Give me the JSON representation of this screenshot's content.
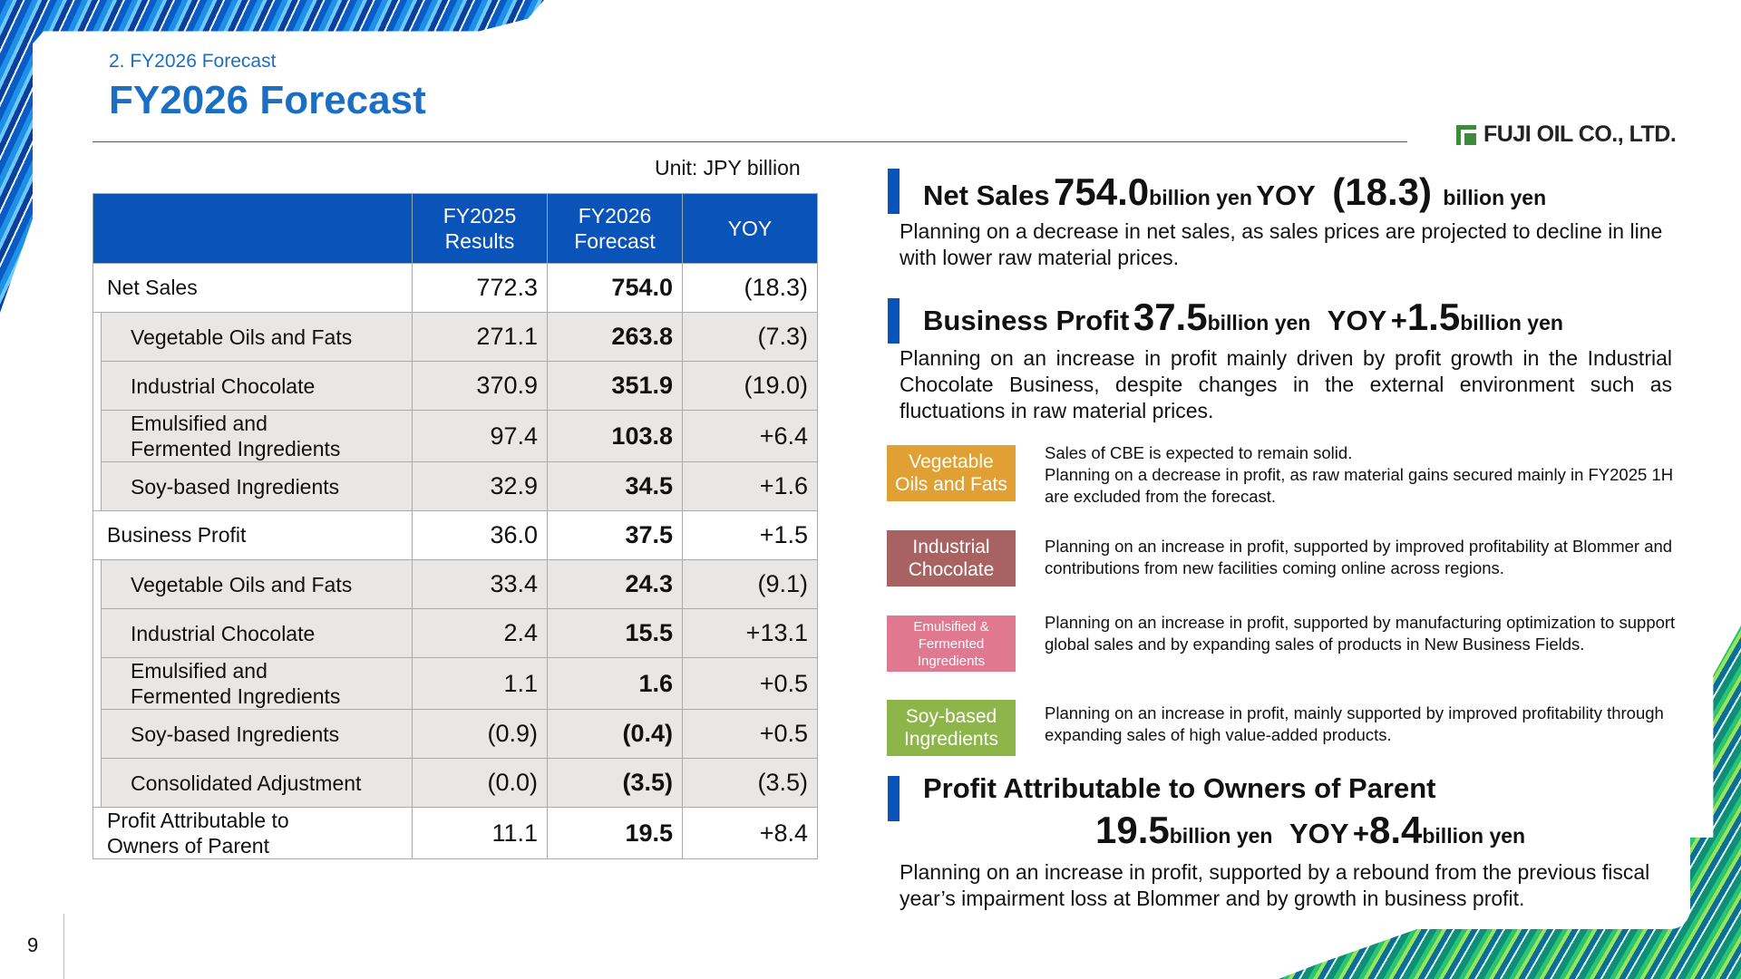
{
  "header": {
    "breadcrumb": "2. FY2026 Forecast",
    "title": "FY2026 Forecast",
    "logo_text": "FUJI OIL CO., LTD."
  },
  "page_number": "9",
  "table": {
    "unit": "Unit: JPY billion",
    "columns": [
      "FY2025\nResults",
      "FY2026\nForecast",
      "YOY"
    ],
    "rows": [
      {
        "label": "Net Sales",
        "fy2025": "772.3",
        "fy2026": "754.0",
        "yoy": "(18.3)"
      },
      {
        "label": "Vegetable Oils and Fats",
        "fy2025": "271.1",
        "fy2026": "263.8",
        "yoy": "(7.3)"
      },
      {
        "label": "Industrial Chocolate",
        "fy2025": "370.9",
        "fy2026": "351.9",
        "yoy": "(19.0)"
      },
      {
        "label": "Emulsified and\n Fermented Ingredients",
        "fy2025": "97.4",
        "fy2026": "103.8",
        "yoy": "+6.4"
      },
      {
        "label": "Soy-based Ingredients",
        "fy2025": "32.9",
        "fy2026": "34.5",
        "yoy": "+1.6"
      },
      {
        "label": "Business Profit",
        "fy2025": "36.0",
        "fy2026": "37.5",
        "yoy": "+1.5"
      },
      {
        "label": "Vegetable Oils and Fats",
        "fy2025": "33.4",
        "fy2026": "24.3",
        "yoy": "(9.1)"
      },
      {
        "label": "Industrial Chocolate",
        "fy2025": "2.4",
        "fy2026": "15.5",
        "yoy": "+13.1"
      },
      {
        "label": "Emulsified and\n Fermented Ingredients",
        "fy2025": "1.1",
        "fy2026": "1.6",
        "yoy": "+0.5"
      },
      {
        "label": "Soy-based Ingredients",
        "fy2025": "(0.9)",
        "fy2026": "(0.4)",
        "yoy": "+0.5"
      },
      {
        "label": "Consolidated Adjustment",
        "fy2025": "(0.0)",
        "fy2026": "(3.5)",
        "yoy": "(3.5)"
      },
      {
        "label": "Profit Attributable to\nOwners of Parent",
        "fy2025": "11.1",
        "fy2026": "19.5",
        "yoy": "+8.4"
      }
    ]
  },
  "net_sales": {
    "label": "Net Sales",
    "value": "754.0",
    "unit": "billion yen",
    "yoy_label": "YOY",
    "yoy_value": "(18.3)",
    "yoy_unit": "billion yen",
    "description": "Planning on a decrease in net sales, as sales prices are projected to decline in line with lower raw material prices."
  },
  "business_profit": {
    "label": "Business Profit",
    "value": "37.5",
    "unit": "billion yen",
    "yoy_label": "YOY",
    "yoy_sign": "+",
    "yoy_value": "1.5",
    "yoy_unit": "billion yen",
    "description": "Planning on an increase in profit mainly driven by profit growth in the Industrial Chocolate Business, despite changes in the external environment such as fluctuations in raw material prices."
  },
  "segments": [
    {
      "name": "Vegetable\nOils and Fats",
      "color": "#e0a033",
      "text": "Sales of CBE is expected to remain solid.\nPlanning on a decrease in profit, as raw material gains secured mainly in FY2025 1H are excluded from the forecast."
    },
    {
      "name": "Industrial\nChocolate",
      "color": "#a86262",
      "text": "Planning on an increase in profit, supported by improved profitability at Blommer and contributions from new facilities coming online across regions."
    },
    {
      "name": "Emulsified &\nFermented\nIngredients",
      "color": "#e07890",
      "text": "Planning on an increase in profit, supported by manufacturing optimization to support global sales and by expanding sales of products in New Business Fields."
    },
    {
      "name": "Soy-based\nIngredients",
      "color": "#8db54a",
      "text": "Planning on an increase in profit, mainly supported by improved profitability through expanding sales of high value-added products."
    }
  ],
  "profit_owners": {
    "label": "Profit Attributable to Owners of Parent",
    "value": "19.5",
    "unit": "billion yen",
    "yoy_label": "YOY",
    "yoy_sign": "+",
    "yoy_value": "8.4",
    "yoy_unit": "billion yen",
    "description": "Planning on an increase in profit, supported by a rebound from the previous fiscal year’s impairment loss at Blommer and by growth in business profit."
  }
}
